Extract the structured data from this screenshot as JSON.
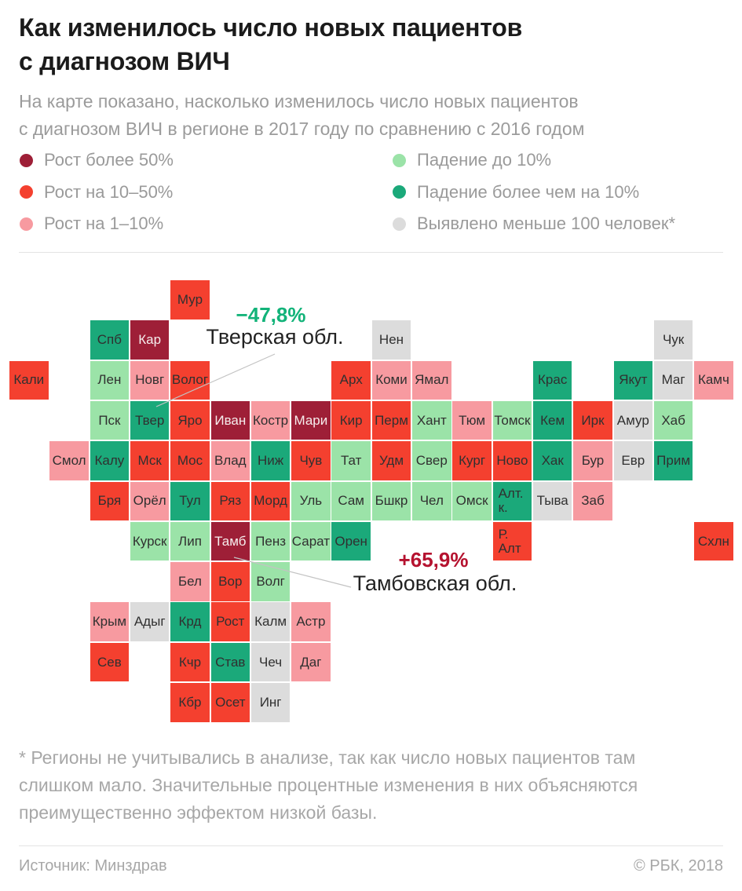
{
  "header": {
    "title_lines": [
      "Как изменилось число новых пациентов",
      "с диагнозом ВИЧ"
    ],
    "subtitle_lines": [
      "На карте показано, насколько изменилось число новых пациентов",
      "с диагнозом ВИЧ в регионе в 2017 году по сравнению с 2016 годом"
    ]
  },
  "chart_data": {
    "type": "heatmap",
    "subtype": "tile-grid-cartogram",
    "title": "Как изменилось число новых пациентов с диагнозом ВИЧ",
    "legend_position": "top",
    "grid": {
      "columns": 18,
      "rows": 11
    },
    "categories": [
      {
        "id": "darkred",
        "label": "Рост более 50%",
        "color": "#9e1f37"
      },
      {
        "id": "red",
        "label": "Рост на 10–50%",
        "color": "#f4402f"
      },
      {
        "id": "pink",
        "label": "Рост на 1–10%",
        "color": "#f79aa0"
      },
      {
        "id": "lightgreen",
        "label": "Падение до 10%",
        "color": "#9be3a8"
      },
      {
        "id": "teal",
        "label": "Падение более чем на 10%",
        "color": "#1ba97a"
      },
      {
        "id": "gray",
        "label": "Выявлено меньше 100 человек*",
        "color": "#dcdcdc"
      }
    ],
    "regions": [
      {
        "label": "Мур",
        "row": 0,
        "col": 4,
        "category": "red"
      },
      {
        "label": "Спб",
        "row": 1,
        "col": 2,
        "category": "teal"
      },
      {
        "label": "Кар",
        "row": 1,
        "col": 3,
        "category": "darkred"
      },
      {
        "label": "Нен",
        "row": 1,
        "col": 9,
        "category": "gray"
      },
      {
        "label": "Чук",
        "row": 1,
        "col": 16,
        "category": "gray"
      },
      {
        "label": "Кали",
        "row": 2,
        "col": 0,
        "category": "red"
      },
      {
        "label": "Лен",
        "row": 2,
        "col": 2,
        "category": "lightgreen"
      },
      {
        "label": "Новг",
        "row": 2,
        "col": 3,
        "category": "pink"
      },
      {
        "label": "Волог",
        "row": 2,
        "col": 4,
        "category": "red"
      },
      {
        "label": "Арх",
        "row": 2,
        "col": 8,
        "category": "red"
      },
      {
        "label": "Коми",
        "row": 2,
        "col": 9,
        "category": "pink"
      },
      {
        "label": "Ямал",
        "row": 2,
        "col": 10,
        "category": "pink"
      },
      {
        "label": "Крас",
        "row": 2,
        "col": 13,
        "category": "teal"
      },
      {
        "label": "Якут",
        "row": 2,
        "col": 15,
        "category": "teal"
      },
      {
        "label": "Маг",
        "row": 2,
        "col": 16,
        "category": "gray"
      },
      {
        "label": "Камч",
        "row": 2,
        "col": 17,
        "category": "pink"
      },
      {
        "label": "Пск",
        "row": 3,
        "col": 2,
        "category": "lightgreen"
      },
      {
        "label": "Твер",
        "row": 3,
        "col": 3,
        "category": "teal"
      },
      {
        "label": "Яро",
        "row": 3,
        "col": 4,
        "category": "red"
      },
      {
        "label": "Иван",
        "row": 3,
        "col": 5,
        "category": "darkred"
      },
      {
        "label": "Костр",
        "row": 3,
        "col": 6,
        "category": "pink"
      },
      {
        "label": "Мари",
        "row": 3,
        "col": 7,
        "category": "darkred"
      },
      {
        "label": "Кир",
        "row": 3,
        "col": 8,
        "category": "red"
      },
      {
        "label": "Перм",
        "row": 3,
        "col": 9,
        "category": "red"
      },
      {
        "label": "Хант",
        "row": 3,
        "col": 10,
        "category": "lightgreen"
      },
      {
        "label": "Тюм",
        "row": 3,
        "col": 11,
        "category": "pink"
      },
      {
        "label": "Томск",
        "row": 3,
        "col": 12,
        "category": "lightgreen"
      },
      {
        "label": "Кем",
        "row": 3,
        "col": 13,
        "category": "teal"
      },
      {
        "label": "Ирк",
        "row": 3,
        "col": 14,
        "category": "red"
      },
      {
        "label": "Амур",
        "row": 3,
        "col": 15,
        "category": "gray"
      },
      {
        "label": "Хаб",
        "row": 3,
        "col": 16,
        "category": "lightgreen"
      },
      {
        "label": "Смол",
        "row": 4,
        "col": 1,
        "category": "pink"
      },
      {
        "label": "Калу",
        "row": 4,
        "col": 2,
        "category": "teal"
      },
      {
        "label": "Мск",
        "row": 4,
        "col": 3,
        "category": "red"
      },
      {
        "label": "Мос",
        "row": 4,
        "col": 4,
        "category": "red"
      },
      {
        "label": "Влад",
        "row": 4,
        "col": 5,
        "category": "pink"
      },
      {
        "label": "Ниж",
        "row": 4,
        "col": 6,
        "category": "teal"
      },
      {
        "label": "Чув",
        "row": 4,
        "col": 7,
        "category": "red"
      },
      {
        "label": "Тат",
        "row": 4,
        "col": 8,
        "category": "lightgreen"
      },
      {
        "label": "Удм",
        "row": 4,
        "col": 9,
        "category": "red"
      },
      {
        "label": "Свер",
        "row": 4,
        "col": 10,
        "category": "lightgreen"
      },
      {
        "label": "Кург",
        "row": 4,
        "col": 11,
        "category": "red"
      },
      {
        "label": "Ново",
        "row": 4,
        "col": 12,
        "category": "red"
      },
      {
        "label": "Хак",
        "row": 4,
        "col": 13,
        "category": "teal"
      },
      {
        "label": "Бур",
        "row": 4,
        "col": 14,
        "category": "pink"
      },
      {
        "label": "Евр",
        "row": 4,
        "col": 15,
        "category": "gray"
      },
      {
        "label": "Прим",
        "row": 4,
        "col": 16,
        "category": "teal"
      },
      {
        "label": "Бря",
        "row": 5,
        "col": 2,
        "category": "red"
      },
      {
        "label": "Орёл",
        "row": 5,
        "col": 3,
        "category": "pink"
      },
      {
        "label": "Тул",
        "row": 5,
        "col": 4,
        "category": "teal"
      },
      {
        "label": "Ряз",
        "row": 5,
        "col": 5,
        "category": "red"
      },
      {
        "label": "Морд",
        "row": 5,
        "col": 6,
        "category": "red"
      },
      {
        "label": "Уль",
        "row": 5,
        "col": 7,
        "category": "lightgreen"
      },
      {
        "label": "Сам",
        "row": 5,
        "col": 8,
        "category": "lightgreen"
      },
      {
        "label": "Бшкр",
        "row": 5,
        "col": 9,
        "category": "lightgreen"
      },
      {
        "label": "Чел",
        "row": 5,
        "col": 10,
        "category": "lightgreen"
      },
      {
        "label": "Омск",
        "row": 5,
        "col": 11,
        "category": "lightgreen"
      },
      {
        "label": "Алт.\nк.",
        "row": 5,
        "col": 12,
        "category": "teal"
      },
      {
        "label": "Тыва",
        "row": 5,
        "col": 13,
        "category": "gray"
      },
      {
        "label": "Заб",
        "row": 5,
        "col": 14,
        "category": "pink"
      },
      {
        "label": "Курск",
        "row": 6,
        "col": 3,
        "category": "lightgreen"
      },
      {
        "label": "Лип",
        "row": 6,
        "col": 4,
        "category": "lightgreen"
      },
      {
        "label": "Тамб",
        "row": 6,
        "col": 5,
        "category": "darkred"
      },
      {
        "label": "Пенз",
        "row": 6,
        "col": 6,
        "category": "lightgreen"
      },
      {
        "label": "Сарат",
        "row": 6,
        "col": 7,
        "category": "lightgreen"
      },
      {
        "label": "Орен",
        "row": 6,
        "col": 8,
        "category": "teal"
      },
      {
        "label": "Р.\nАлт",
        "row": 6,
        "col": 12,
        "category": "red"
      },
      {
        "label": "Схлн",
        "row": 6,
        "col": 17,
        "category": "red"
      },
      {
        "label": "Бел",
        "row": 7,
        "col": 4,
        "category": "pink"
      },
      {
        "label": "Вор",
        "row": 7,
        "col": 5,
        "category": "red"
      },
      {
        "label": "Волг",
        "row": 7,
        "col": 6,
        "category": "lightgreen"
      },
      {
        "label": "Крым",
        "row": 8,
        "col": 2,
        "category": "pink"
      },
      {
        "label": "Адыг",
        "row": 8,
        "col": 3,
        "category": "gray"
      },
      {
        "label": "Крд",
        "row": 8,
        "col": 4,
        "category": "teal"
      },
      {
        "label": "Рост",
        "row": 8,
        "col": 5,
        "category": "red"
      },
      {
        "label": "Калм",
        "row": 8,
        "col": 6,
        "category": "gray"
      },
      {
        "label": "Астр",
        "row": 8,
        "col": 7,
        "category": "pink"
      },
      {
        "label": "Сев",
        "row": 9,
        "col": 2,
        "category": "red"
      },
      {
        "label": "Кчр",
        "row": 9,
        "col": 4,
        "category": "red"
      },
      {
        "label": "Став",
        "row": 9,
        "col": 5,
        "category": "teal"
      },
      {
        "label": "Чеч",
        "row": 9,
        "col": 6,
        "category": "gray"
      },
      {
        "label": "Даг",
        "row": 9,
        "col": 7,
        "category": "pink"
      },
      {
        "label": "Кбр",
        "row": 10,
        "col": 4,
        "category": "red"
      },
      {
        "label": "Осет",
        "row": 10,
        "col": 5,
        "category": "red"
      },
      {
        "label": "Инг",
        "row": 10,
        "col": 6,
        "category": "gray"
      }
    ],
    "annotations": [
      {
        "value": "−47,8%",
        "region": "Тверская обл.",
        "color": "#12b379"
      },
      {
        "value": "+65,9%",
        "region": "Тамбовская обл.",
        "color": "#b5122f"
      }
    ]
  },
  "footnote_lines": [
    "* Регионы не учитывались в анализе, так как число новых пациентов там",
    "слишком мало. Значительные процентные изменения в них объясняются",
    "преимущественно эффектом низкой базы."
  ],
  "footer": {
    "source": "Источник: Минздрав",
    "copyright": "© РБК, 2018"
  }
}
